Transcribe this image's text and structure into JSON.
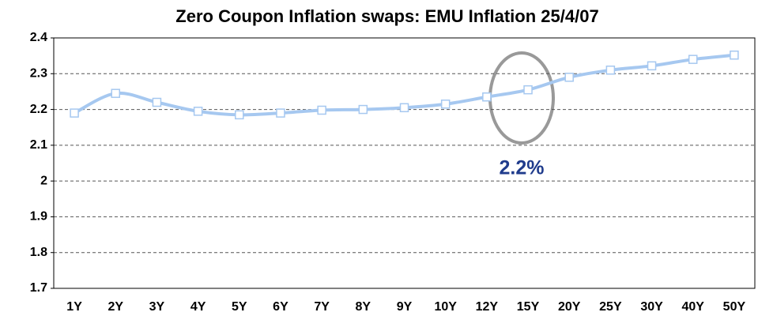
{
  "chart_data": {
    "type": "line",
    "title": "Zero Coupon Inflation swaps: EMU Inflation 25/4/07",
    "categories": [
      "1Y",
      "2Y",
      "3Y",
      "4Y",
      "5Y",
      "6Y",
      "7Y",
      "8Y",
      "9Y",
      "10Y",
      "12Y",
      "15Y",
      "20Y",
      "25Y",
      "30Y",
      "40Y",
      "50Y"
    ],
    "series": [
      {
        "color": "#a6c8f0",
        "values": [
          2.19,
          2.245,
          2.22,
          2.195,
          2.185,
          2.19,
          2.198,
          2.2,
          2.205,
          2.215,
          2.235,
          2.255,
          2.29,
          2.31,
          2.322,
          2.34,
          2.352
        ]
      }
    ],
    "ylim": [
      1.7,
      2.4
    ],
    "yticks": [
      1.7,
      1.8,
      1.9,
      2,
      2.1,
      2.2,
      2.3,
      2.4
    ],
    "grid": true,
    "annotation": "2.2%"
  }
}
